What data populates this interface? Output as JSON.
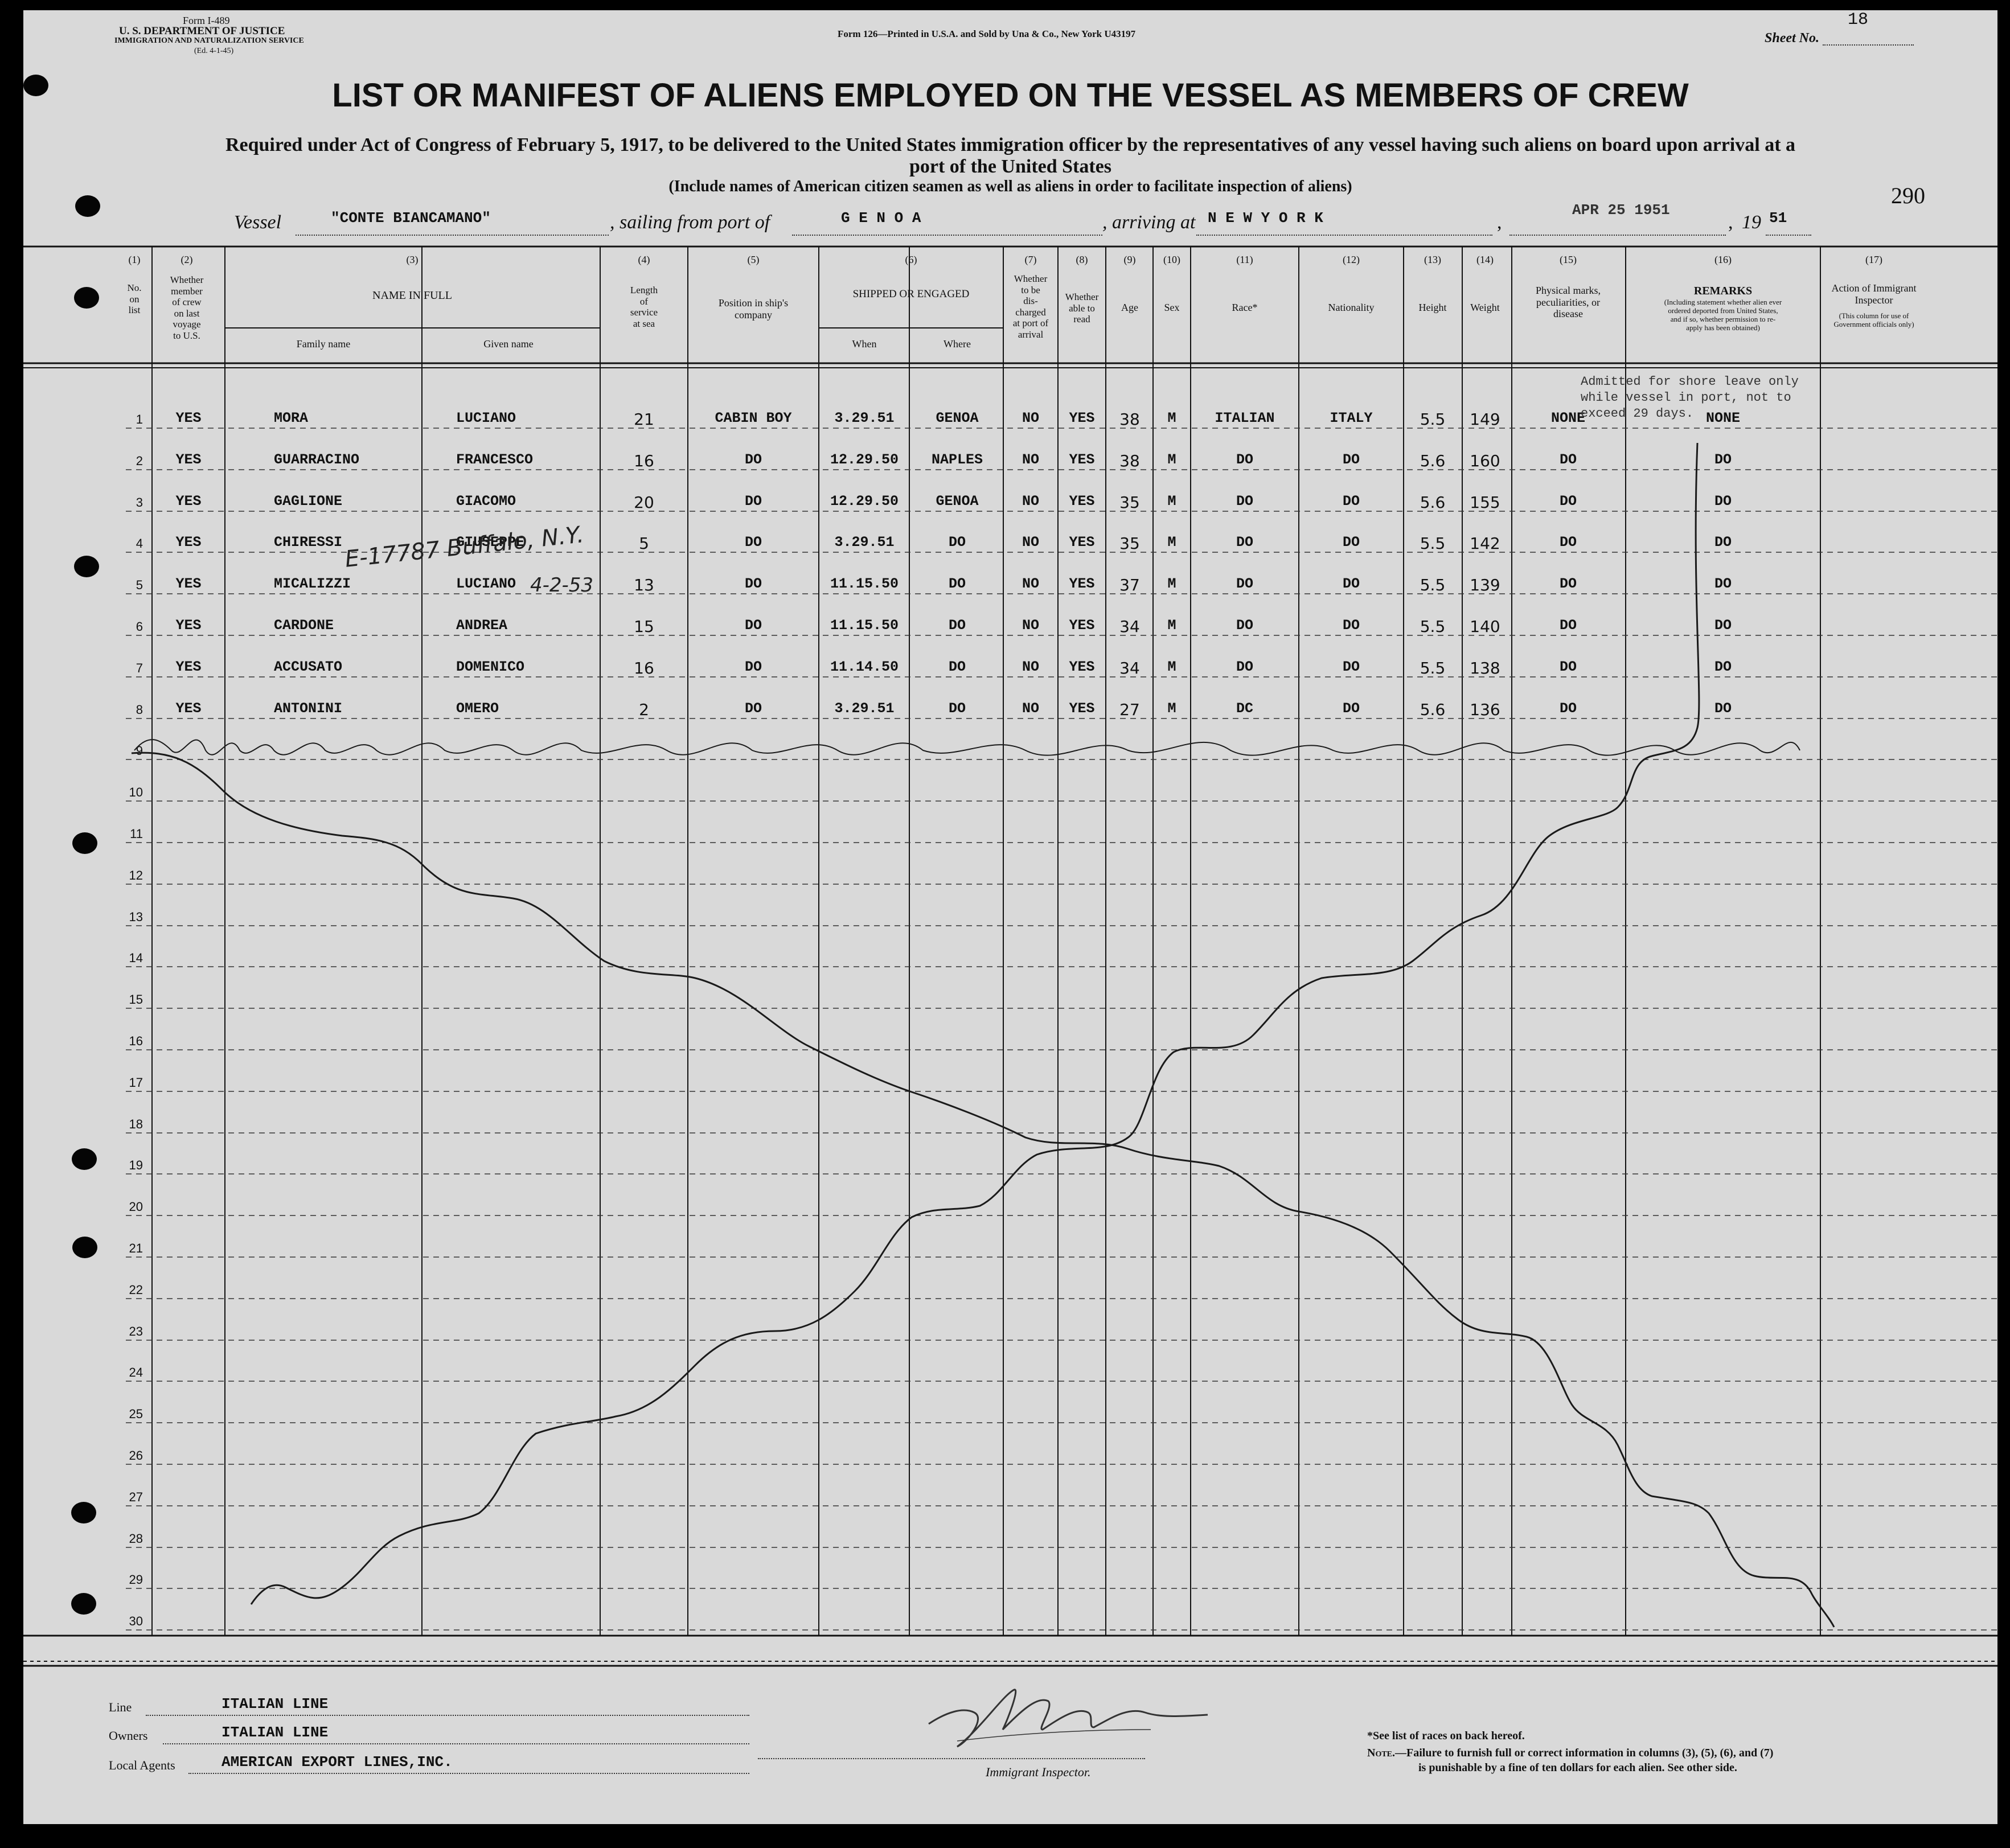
{
  "header": {
    "form_number": "Form I-489",
    "department": "U. S. DEPARTMENT OF JUSTICE",
    "service": "IMMIGRATION AND NATURALIZATION SERVICE",
    "form_date": "(Ed. 4-1-45)",
    "printer_note": "Form 126—Printed in U.S.A. and Sold by Una & Co., New York  U43197",
    "sheet_label": "Sheet No.",
    "sheet_number": "18",
    "page_number": "290",
    "title": "LIST OR MANIFEST OF ALIENS EMPLOYED ON THE VESSEL AS MEMBERS OF CREW",
    "subtitle_line1": "Required under Act of Congress of February 5, 1917, to be delivered to the United States immigration officer by the representatives of any vessel having such aliens on board upon arrival at a",
    "subtitle_line2": "port of the United States",
    "subtitle_note": "(Include names of American citizen seamen as well as aliens in order to facilitate inspection of aliens)"
  },
  "voyage": {
    "vessel_label": "Vessel",
    "vessel_name": "\"CONTE BIANCAMANO\"",
    "sailing_label": ", sailing from port of",
    "sailing_from": "G E N O A",
    "arriving_label": ", arriving at",
    "arriving_at": "N E W  Y O R K",
    "date_stamp": "APR 25 1951",
    "year_prefix": "19",
    "year_suffix": "51"
  },
  "columns": {
    "c1": {
      "num": "(1)",
      "label": "No.\non\nlist"
    },
    "c2": {
      "num": "(2)",
      "label": "Whether\nmember\nof crew\non last\nvoyage\nto U.S."
    },
    "c3": {
      "num": "(3)",
      "label": "NAME IN FULL",
      "family": "Family name",
      "given": "Given name"
    },
    "c4": {
      "num": "(4)",
      "label": "Length\nof\nservice\nat sea"
    },
    "c5": {
      "num": "(5)",
      "label": "Position in ship's\ncompany"
    },
    "c6": {
      "num": "(6)",
      "label": "SHIPPED OR ENGAGED",
      "when": "When",
      "where": "Where"
    },
    "c7": {
      "num": "(7)",
      "label": "Whether\nto be\ndis-\ncharged\nat port of\narrival"
    },
    "c8": {
      "num": "(8)",
      "label": "Whether\nable to\nread"
    },
    "c9": {
      "num": "(9)",
      "label": "Age"
    },
    "c10": {
      "num": "(10)",
      "label": "Sex"
    },
    "c11": {
      "num": "(11)",
      "label": "Race*"
    },
    "c12": {
      "num": "(12)",
      "label": "Nationality"
    },
    "c13": {
      "num": "(13)",
      "label": "Height"
    },
    "c14": {
      "num": "(14)",
      "label": "Weight"
    },
    "c15": {
      "num": "(15)",
      "label": "Physical marks,\npeculiarities, or\ndisease"
    },
    "c16": {
      "num": "(16)",
      "label": "REMARKS",
      "sublabel": "(Including statement whether alien ever\nordered deported from United States,\nand if so, whether permission to re-\napply has been obtained)"
    },
    "c17": {
      "num": "(17)",
      "label": "Action of Immigrant\nInspector",
      "sublabel": "(This column for use of\nGovernment officials only)"
    }
  },
  "row_numbers": [
    "1",
    "2",
    "3",
    "4",
    "5",
    "6",
    "7",
    "8",
    "9",
    "10",
    "11",
    "12",
    "13",
    "14",
    "15",
    "16",
    "17",
    "18",
    "19",
    "20",
    "21",
    "22",
    "23",
    "24",
    "25",
    "26",
    "27",
    "28",
    "29",
    "30"
  ],
  "rows": [
    {
      "crew": "YES",
      "family": "MORA",
      "given": "LUCIANO",
      "service": "21",
      "position": "CABIN BOY",
      "when": "3.29.51",
      "where": "GENOA",
      "discharged": "NO",
      "read": "YES",
      "age": "38",
      "sex": "M",
      "race": "ITALIAN",
      "nationality": "ITALY",
      "height": "5.5",
      "weight": "149",
      "marks": "NONE",
      "remarks": "NONE"
    },
    {
      "crew": "YES",
      "family": "GUARRACINO",
      "given": "FRANCESCO",
      "service": "16",
      "position": "DO",
      "when": "12.29.50",
      "where": "NAPLES",
      "discharged": "NO",
      "read": "YES",
      "age": "38",
      "sex": "M",
      "race": "DO",
      "nationality": "DO",
      "height": "5.6",
      "weight": "160",
      "marks": "DO",
      "remarks": "DO"
    },
    {
      "crew": "YES",
      "family": "GAGLIONE",
      "given": "GIACOMO",
      "service": "20",
      "position": "DO",
      "when": "12.29.50",
      "where": "GENOA",
      "discharged": "NO",
      "read": "YES",
      "age": "35",
      "sex": "M",
      "race": "DO",
      "nationality": "DO",
      "height": "5.6",
      "weight": "155",
      "marks": "DO",
      "remarks": "DO"
    },
    {
      "crew": "YES",
      "family": "CHIRESSI",
      "given": "GIUSEPPE",
      "service": "5",
      "position": "DO",
      "when": "3.29.51",
      "where": "DO",
      "discharged": "NO",
      "read": "YES",
      "age": "35",
      "sex": "M",
      "race": "DO",
      "nationality": "DO",
      "height": "5.5",
      "weight": "142",
      "marks": "DO",
      "remarks": "DO"
    },
    {
      "crew": "YES",
      "family": "MICALIZZI",
      "given": "LUCIANO",
      "service": "13",
      "position": "DO",
      "when": "11.15.50",
      "where": "DO",
      "discharged": "NO",
      "read": "YES",
      "age": "37",
      "sex": "M",
      "race": "DO",
      "nationality": "DO",
      "height": "5.5",
      "weight": "139",
      "marks": "DO",
      "remarks": "DO"
    },
    {
      "crew": "YES",
      "family": "CARDONE",
      "given": "ANDREA",
      "service": "15",
      "position": "DO",
      "when": "11.15.50",
      "where": "DO",
      "discharged": "NO",
      "read": "YES",
      "age": "34",
      "sex": "M",
      "race": "DO",
      "nationality": "DO",
      "height": "5.5",
      "weight": "140",
      "marks": "DO",
      "remarks": "DO"
    },
    {
      "crew": "YES",
      "family": "ACCUSATO",
      "given": "DOMENICO",
      "service": "16",
      "position": "DO",
      "when": "11.14.50",
      "where": "DO",
      "discharged": "NO",
      "read": "YES",
      "age": "34",
      "sex": "M",
      "race": "DO",
      "nationality": "DO",
      "height": "5.5",
      "weight": "138",
      "marks": "DO",
      "remarks": "DO"
    },
    {
      "crew": "YES",
      "family": "ANTONINI",
      "given": "OMERO",
      "service": "2",
      "position": "DO",
      "when": "3.29.51",
      "where": "DO",
      "discharged": "NO",
      "read": "YES",
      "age": "27",
      "sex": "M",
      "race": "DC",
      "nationality": "DO",
      "height": "5.6",
      "weight": "136",
      "marks": "DO",
      "remarks": "DO"
    }
  ],
  "annotations": {
    "remark_line1": "Admitted for shore leave only",
    "remark_line2": "while vessel in port, not to",
    "remark_line3": "exceed 29 days.",
    "handwritten_1": "E-17787 Buffalo, N.Y.",
    "handwritten_2": "4-2-53"
  },
  "footer": {
    "line_label": "Line",
    "line_value": "ITALIAN LINE",
    "owners_label": "Owners",
    "owners_value": "ITALIAN LINE",
    "agents_label": "Local Agents",
    "agents_value": "AMERICAN EXPORT LINES,INC.",
    "inspector_label": "Immigrant Inspector.",
    "race_note": "*See list of races on back hereof.",
    "note_label": "Note.",
    "note_text1": "—Failure to furnish full or correct information in columns (3), (5), (6), and (7)",
    "note_text2": "is punishable by a fine of ten dollars for each alien.  See other side."
  }
}
